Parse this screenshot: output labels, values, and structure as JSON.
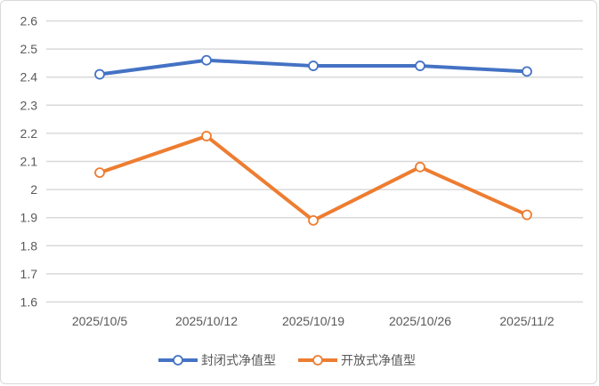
{
  "chart_data": {
    "type": "line",
    "title": "",
    "xlabel": "",
    "ylabel": "",
    "categories": [
      "2025/10/5",
      "2025/10/12",
      "2025/10/19",
      "2025/10/26",
      "2025/11/2"
    ],
    "ylim": [
      1.6,
      2.6
    ],
    "yticks": [
      "1.6",
      "1.7",
      "1.8",
      "1.9",
      "2",
      "2.1",
      "2.2",
      "2.3",
      "2.4",
      "2.5",
      "2.6"
    ],
    "grid": true,
    "legend_position": "bottom",
    "series": [
      {
        "name": "封闭式净值型",
        "color": "#4472c4",
        "values": [
          2.41,
          2.46,
          2.44,
          2.44,
          2.42
        ]
      },
      {
        "name": "开放式净值型",
        "color": "#ed7d31",
        "values": [
          2.06,
          2.19,
          1.89,
          2.08,
          1.91
        ]
      }
    ]
  }
}
